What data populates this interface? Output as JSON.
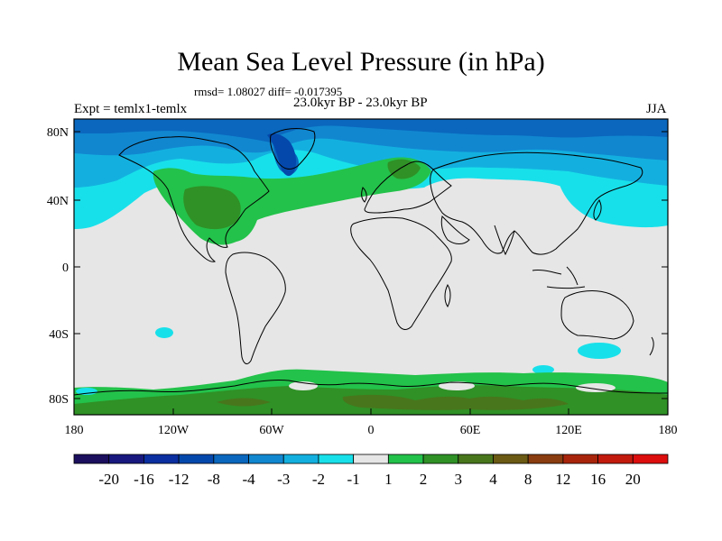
{
  "title": "Mean Sea Level Pressure (in hPa)",
  "stats": "rmsd= 1.08027 diff= -0.017395",
  "period": "23.0kyr BP - 23.0kyr BP",
  "experiment": "Expt = temlx1-temlx",
  "season": "JJA",
  "axes": {
    "x_ticks": [
      "180",
      "120W",
      "60W",
      "0",
      "60E",
      "120E",
      "180"
    ],
    "y_ticks": [
      "80N",
      "40N",
      "0",
      "40S",
      "80S"
    ]
  },
  "colorbar": {
    "colors": [
      "#1b0f5e",
      "#18187f",
      "#0b2fa0",
      "#0448ac",
      "#0a67bd",
      "#1187d0",
      "#13b0df",
      "#18e0ea",
      "#e6e6e6",
      "#23c24a",
      "#2f9126",
      "#48761c",
      "#6a5a14",
      "#8a3d10",
      "#a8250c",
      "#c21a0d",
      "#dd0e0e"
    ],
    "labels": [
      "-20",
      "-16",
      "-12",
      "-8",
      "-4",
      "-3",
      "-2",
      "-1",
      "1",
      "2",
      "3",
      "4",
      "8",
      "12",
      "16",
      "20"
    ]
  }
}
